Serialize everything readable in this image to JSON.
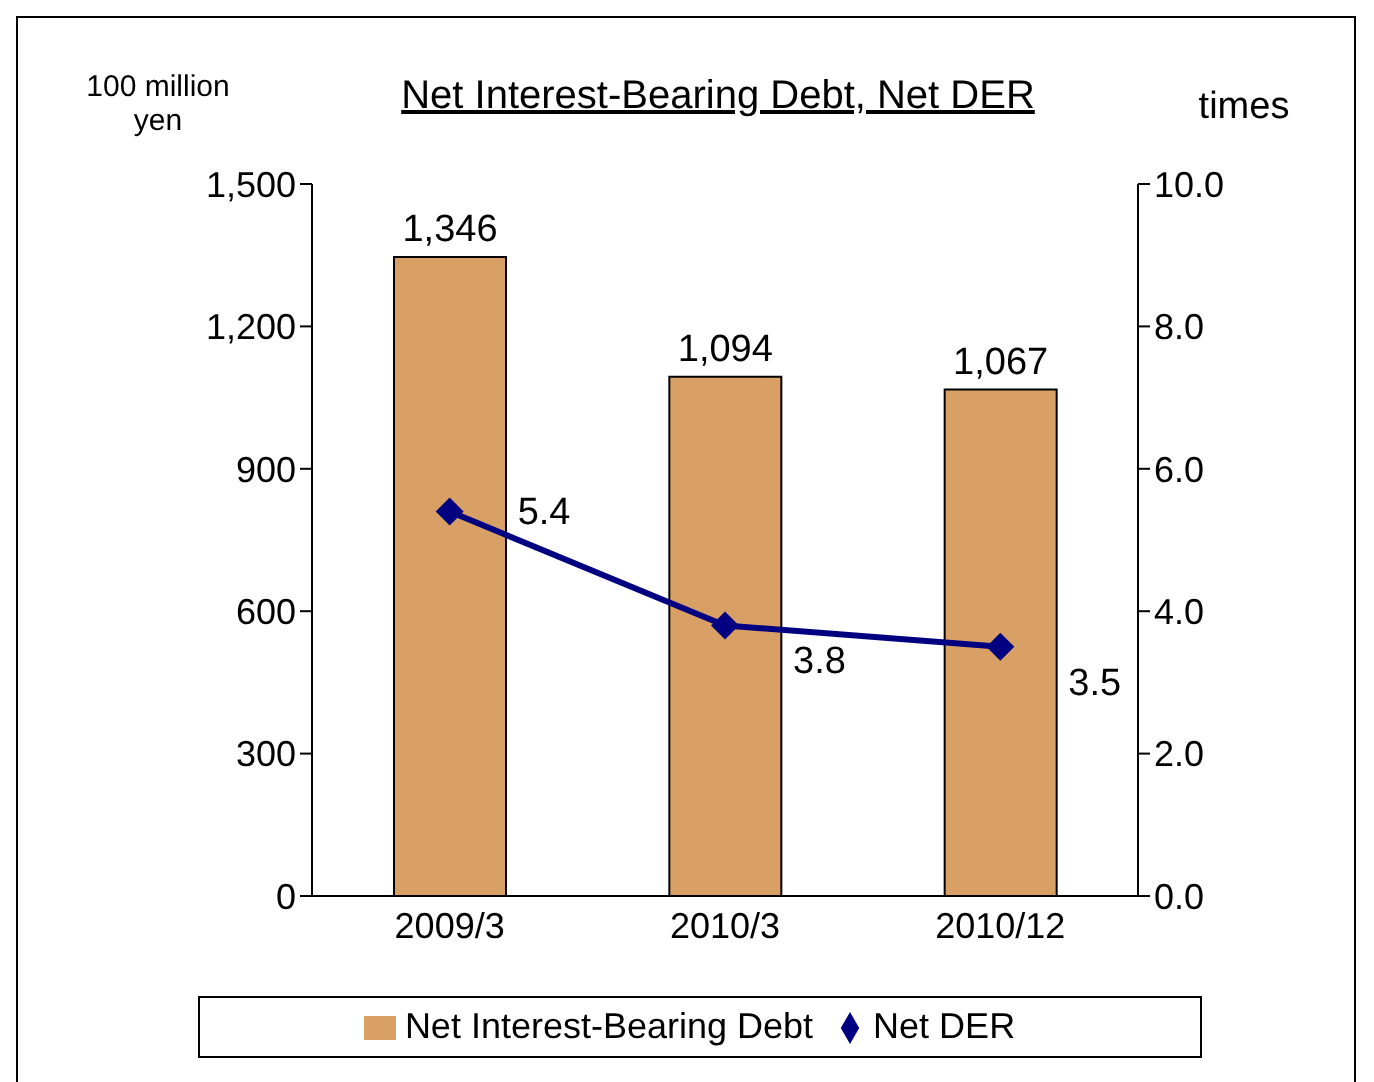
{
  "chart_data": {
    "type": "bar",
    "title": "Net Interest-Bearing Debt, Net DER",
    "ylabel": "100 million yen",
    "y2label": "times",
    "categories": [
      "2009/3",
      "2010/3",
      "2010/12"
    ],
    "series": [
      {
        "name": "Net Interest-Bearing Debt",
        "color": "#d9a066",
        "values": [
          1346,
          1094,
          1067
        ],
        "value_labels": [
          "1,346",
          "1,094",
          "1,067"
        ]
      },
      {
        "name": "Net DER",
        "type": "line",
        "axis": "y2",
        "color": "#000080",
        "values": [
          5.4,
          3.8,
          3.5
        ],
        "value_labels": [
          "5.4",
          "3.8",
          "3.5"
        ],
        "marker": "diamond"
      }
    ],
    "ylim": [
      0,
      1500
    ],
    "yticks": [
      {
        "value": 0,
        "label": "0"
      },
      {
        "value": 300,
        "label": "300"
      },
      {
        "value": 600,
        "label": "600"
      },
      {
        "value": 900,
        "label": "900"
      },
      {
        "value": 1200,
        "label": "1,200"
      },
      {
        "value": 1500,
        "label": "1,500"
      }
    ],
    "y2lim": [
      0,
      10
    ],
    "y2ticks": [
      {
        "value": 0,
        "label": "0.0"
      },
      {
        "value": 2,
        "label": "2.0"
      },
      {
        "value": 4,
        "label": "4.0"
      },
      {
        "value": 6,
        "label": "6.0"
      },
      {
        "value": 8,
        "label": "8.0"
      },
      {
        "value": 10,
        "label": "10.0"
      }
    ],
    "grid": false,
    "legend": "bottom"
  }
}
